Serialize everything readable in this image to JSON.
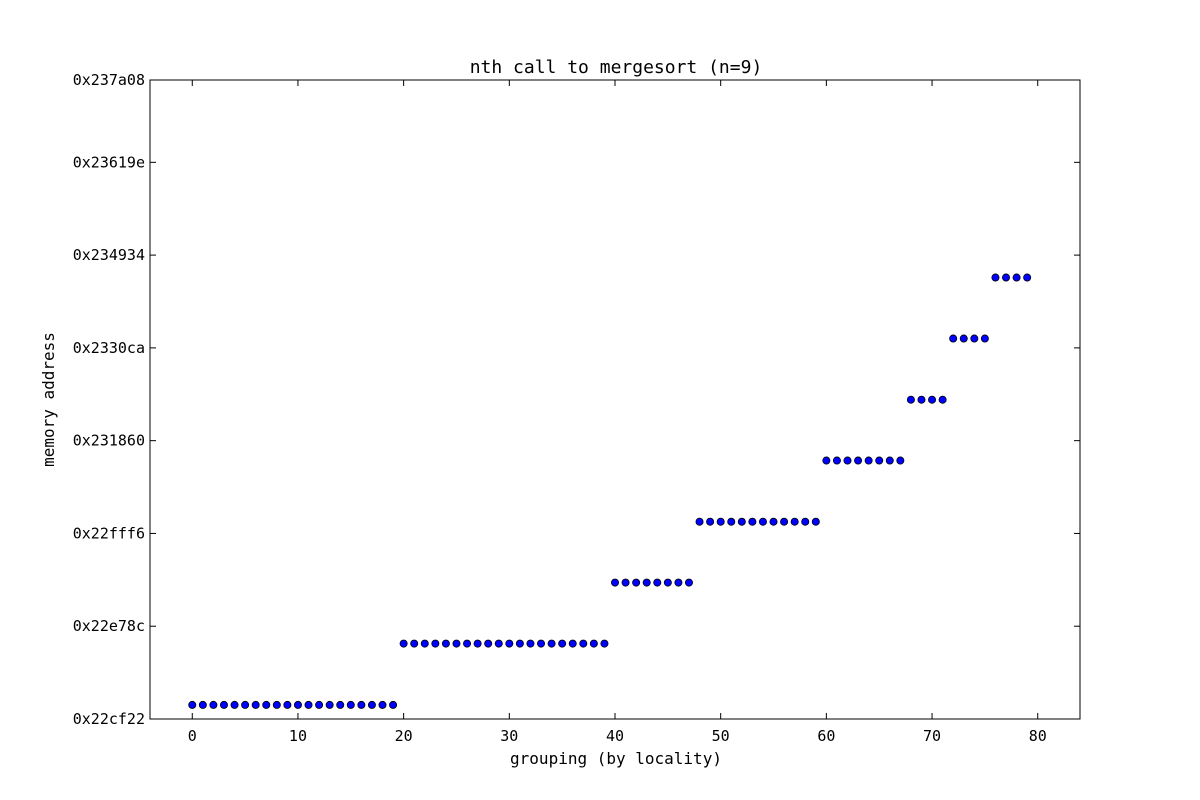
{
  "chart_data": {
    "type": "scatter",
    "title": "nth call to mergesort (n=9)",
    "xlabel": "grouping (by locality)",
    "ylabel": "memory address",
    "xlim": [
      -4,
      84
    ],
    "ylim": [
      2281250,
      2324296
    ],
    "x_ticks": [
      0,
      10,
      20,
      30,
      40,
      50,
      60,
      70,
      80
    ],
    "y_ticks": [
      {
        "value": 2281250,
        "label": "0x22cf22"
      },
      {
        "value": 2287500,
        "label": "0x22e78c"
      },
      {
        "value": 2293750,
        "label": "0x22fff6"
      },
      {
        "value": 2300000,
        "label": "0x231860"
      },
      {
        "value": 2306250,
        "label": "0x2330ca"
      },
      {
        "value": 2312500,
        "label": "0x234934"
      },
      {
        "value": 2318750,
        "label": "0x23619e"
      },
      {
        "value": 2325000,
        "label": "0x237a08"
      }
    ],
    "grid": false,
    "marker_color": "#0000ff",
    "groups": [
      {
        "x_start": 0,
        "x_end": 19,
        "y": 2282200
      },
      {
        "x_start": 20,
        "x_end": 39,
        "y": 2286330
      },
      {
        "x_start": 40,
        "x_end": 47,
        "y": 2290440
      },
      {
        "x_start": 48,
        "x_end": 59,
        "y": 2294540
      },
      {
        "x_start": 60,
        "x_end": 67,
        "y": 2298660
      },
      {
        "x_start": 68,
        "x_end": 71,
        "y": 2302760
      },
      {
        "x_start": 72,
        "x_end": 75,
        "y": 2306880
      },
      {
        "x_start": 76,
        "x_end": 79,
        "y": 2310990
      }
    ]
  }
}
